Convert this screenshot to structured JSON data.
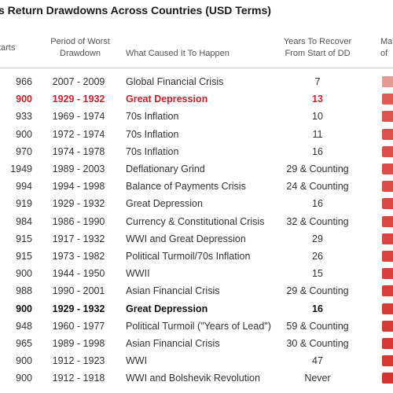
{
  "chart_data": {
    "type": "table",
    "title": "s Return Drawdowns Across Countries (USD Terms)",
    "columns": {
      "start": "Starts",
      "period": "Period of Worst\nDrawdown",
      "cause": "What Caused It To Happen",
      "years": "Years To Recover\nFrom Start of DD",
      "max": "Ma\nof"
    },
    "rows": [
      {
        "start": "966",
        "period": "2007 - 2009",
        "cause": "Global Financial Crisis",
        "years": "7",
        "style": "normal",
        "bar_color": "#e39a95"
      },
      {
        "start": "900",
        "period": "1929 - 1932",
        "cause": "Great Depression",
        "years": "13",
        "style": "red",
        "bar_color": "#e05a54"
      },
      {
        "start": "933",
        "period": "1969 - 1974",
        "cause": "70s Inflation",
        "years": "10",
        "style": "normal",
        "bar_color": "#de524d"
      },
      {
        "start": "900",
        "period": "1972 - 1974",
        "cause": "70s Inflation",
        "years": "11",
        "style": "normal",
        "bar_color": "#de504b"
      },
      {
        "start": "970",
        "period": "1974 - 1978",
        "cause": "70s Inflation",
        "years": "16",
        "style": "normal",
        "bar_color": "#dd4e49"
      },
      {
        "start": "1949",
        "period": "1989 - 2003",
        "cause": "Deflationary Grind",
        "years": "29 & Counting",
        "style": "normal",
        "bar_color": "#dd4c47"
      },
      {
        "start": "994",
        "period": "1994 - 1998",
        "cause": "Balance of Payments Crisis",
        "years": "24 & Counting",
        "style": "normal",
        "bar_color": "#dc4a45"
      },
      {
        "start": "919",
        "period": "1929 - 1932",
        "cause": "Great Depression",
        "years": "16",
        "style": "normal",
        "bar_color": "#dc4843"
      },
      {
        "start": "984",
        "period": "1986 - 1990",
        "cause": "Currency & Constitutional Crisis",
        "years": "32 & Counting",
        "style": "normal",
        "bar_color": "#db4641"
      },
      {
        "start": "915",
        "period": "1917 - 1932",
        "cause": "WWI and Great Depression",
        "years": "29",
        "style": "normal",
        "bar_color": "#db443f"
      },
      {
        "start": "915",
        "period": "1973 - 1982",
        "cause": "Political Turmoil/70s Inflation",
        "years": "26",
        "style": "normal",
        "bar_color": "#da423d"
      },
      {
        "start": "900",
        "period": "1944 - 1950",
        "cause": "WWII",
        "years": "15",
        "style": "normal",
        "bar_color": "#da403b"
      },
      {
        "start": "988",
        "period": "1990 - 2001",
        "cause": "Asian Financial Crisis",
        "years": "29 & Counting",
        "style": "normal",
        "bar_color": "#d93e39"
      },
      {
        "start": "900",
        "period": "1929 - 1932",
        "cause": "Great Depression",
        "years": "16",
        "style": "bold",
        "bar_color": "#d93c37"
      },
      {
        "start": "948",
        "period": "1960 - 1977",
        "cause": "Political Turmoil (\"Years of Lead\")",
        "years": "59 & Counting",
        "style": "normal",
        "bar_color": "#d83a35"
      },
      {
        "start": "965",
        "period": "1989 - 1998",
        "cause": "Asian Financial Crisis",
        "years": "30 & Counting",
        "style": "normal",
        "bar_color": "#d83833"
      },
      {
        "start": "900",
        "period": "1912 - 1923",
        "cause": "WWI",
        "years": "47",
        "style": "normal",
        "bar_color": "#d73631"
      },
      {
        "start": "900",
        "period": "1912 - 1918",
        "cause": "WWI and Bolshevik Revolution",
        "years": "Never",
        "style": "normal",
        "bar_color": "#d6342f"
      }
    ]
  }
}
